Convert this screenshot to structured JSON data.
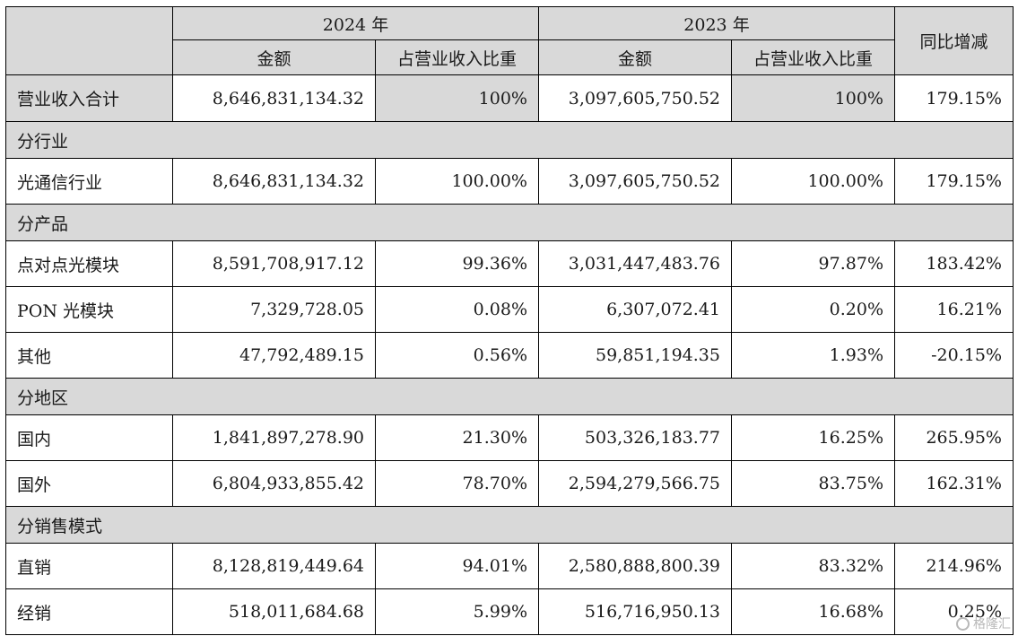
{
  "header": {
    "year_2024": "2024 年",
    "year_2023": "2023 年",
    "amount": "金额",
    "ratio": "占营业收入比重",
    "yoy": "同比增减"
  },
  "total": {
    "label": "营业收入合计",
    "amt_2024": "8,646,831,134.32",
    "ratio_2024": "100%",
    "amt_2023": "3,097,605,750.52",
    "ratio_2023": "100%",
    "yoy": "179.15%"
  },
  "sections": [
    {
      "title": "分行业",
      "rows": [
        {
          "label": "光通信行业",
          "amt_2024": "8,646,831,134.32",
          "ratio_2024": "100.00%",
          "amt_2023": "3,097,605,750.52",
          "ratio_2023": "100.00%",
          "yoy": "179.15%"
        }
      ]
    },
    {
      "title": "分产品",
      "rows": [
        {
          "label": "点对点光模块",
          "amt_2024": "8,591,708,917.12",
          "ratio_2024": "99.36%",
          "amt_2023": "3,031,447,483.76",
          "ratio_2023": "97.87%",
          "yoy": "183.42%"
        },
        {
          "label": "PON 光模块",
          "amt_2024": "7,329,728.05",
          "ratio_2024": "0.08%",
          "amt_2023": "6,307,072.41",
          "ratio_2023": "0.20%",
          "yoy": "16.21%"
        },
        {
          "label": "其他",
          "amt_2024": "47,792,489.15",
          "ratio_2024": "0.56%",
          "amt_2023": "59,851,194.35",
          "ratio_2023": "1.93%",
          "yoy": "-20.15%"
        }
      ]
    },
    {
      "title": "分地区",
      "rows": [
        {
          "label": "国内",
          "amt_2024": "1,841,897,278.90",
          "ratio_2024": "21.30%",
          "amt_2023": "503,326,183.77",
          "ratio_2023": "16.25%",
          "yoy": "265.95%"
        },
        {
          "label": "国外",
          "amt_2024": "6,804,933,855.42",
          "ratio_2024": "78.70%",
          "amt_2023": "2,594,279,566.75",
          "ratio_2023": "83.75%",
          "yoy": "162.31%"
        }
      ]
    },
    {
      "title": "分销售模式",
      "rows": [
        {
          "label": "直销",
          "amt_2024": "8,128,819,449.64",
          "ratio_2024": "94.01%",
          "amt_2023": "2,580,888,800.39",
          "ratio_2023": "83.32%",
          "yoy": "214.96%"
        },
        {
          "label": "经销",
          "amt_2024": "518,011,684.68",
          "ratio_2024": "5.99%",
          "amt_2023": "516,716,950.13",
          "ratio_2023": "16.68%",
          "yoy": "0.25%"
        }
      ]
    }
  ],
  "watermark": {
    "text": "格隆汇",
    "icon": "watermark-logo-icon"
  }
}
